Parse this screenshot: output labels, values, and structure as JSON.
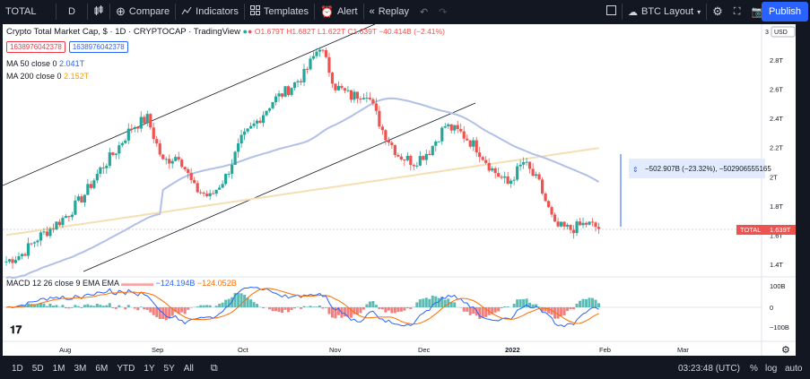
{
  "toolbar": {
    "symbol": "TOTAL",
    "interval": "D",
    "compare_label": "Compare",
    "indicators_label": "Indicators",
    "templates_label": "Templates",
    "alert_label": "Alert",
    "replay_label": "Replay",
    "layout_label": "BTC Layout",
    "publish_label": "Publish"
  },
  "legend": {
    "title": "Crypto Total Market Cap, $ · 1D · CRYPTOCAP · TradingView",
    "ohlc": "O1.679T H1.682T L1.622T C1.639T −40.414B (−2.41%)",
    "box1": "1638976042378",
    "box2": "1638976042378",
    "ma50_label": "MA 50 close 0",
    "ma50_value": "2.041T",
    "ma200_label": "MA 200 close 0",
    "ma200_value": "2.152T",
    "macd_label": "MACD 12 26 close 9 EMA EMA",
    "macd_v1": "−124.194B",
    "macd_v2": "−124.052B",
    "measure_label": "−502.907B (−23.32%), −502906555165"
  },
  "price_axis": {
    "currency": "USD",
    "ticks": [
      "2.8T",
      "2.6T",
      "2.4T",
      "2.2T",
      "2T",
      "1.8T",
      "1.6T",
      "1.4T"
    ],
    "current_symbol": "TOTAL",
    "current_value": "1.639T"
  },
  "macd_axis": {
    "ticks": [
      "100B",
      "0",
      "−100B"
    ]
  },
  "time_axis": {
    "ticks": [
      "Aug",
      "Sep",
      "Oct",
      "Nov",
      "Dec",
      "2022",
      "Feb",
      "Mar"
    ]
  },
  "bottombar": {
    "timeframes": [
      "1D",
      "5D",
      "1M",
      "3M",
      "6M",
      "YTD",
      "1Y",
      "5Y",
      "All"
    ],
    "clock": "03:23:48 (UTC)",
    "pct_label": "%",
    "log_label": "log",
    "auto_label": "auto"
  },
  "colors": {
    "up": "#26a69a",
    "down": "#ef5350",
    "ma50": "#b2c0e8",
    "ma200": "#f5deb3",
    "accent": "#2962ff"
  },
  "chart_data": {
    "type": "candlestick",
    "title": "Crypto Total Market Cap, $ · 1D · CRYPTOCAP · TradingView",
    "ylim": [
      1.4,
      3.0
    ],
    "x_ticks": [
      "Aug",
      "Sep",
      "Oct",
      "Nov",
      "Dec",
      "2022",
      "Feb",
      "Mar"
    ],
    "last_close": 1.639,
    "series": [
      {
        "name": "MA 50 close 0",
        "last": 2.041
      },
      {
        "name": "MA 200 close 0",
        "last": 2.152
      }
    ],
    "weekly_close_approx": [
      1.42,
      1.47,
      1.58,
      1.66,
      1.75,
      1.88,
      2.05,
      2.18,
      2.34,
      2.4,
      2.1,
      2.15,
      1.92,
      1.86,
      2.0,
      2.25,
      2.38,
      2.52,
      2.6,
      2.7,
      2.9,
      2.62,
      2.55,
      2.58,
      2.32,
      2.15,
      2.1,
      2.18,
      2.35,
      2.3,
      2.2,
      2.05,
      1.95,
      2.1,
      1.95,
      1.66,
      1.64,
      1.68,
      1.64
    ]
  }
}
